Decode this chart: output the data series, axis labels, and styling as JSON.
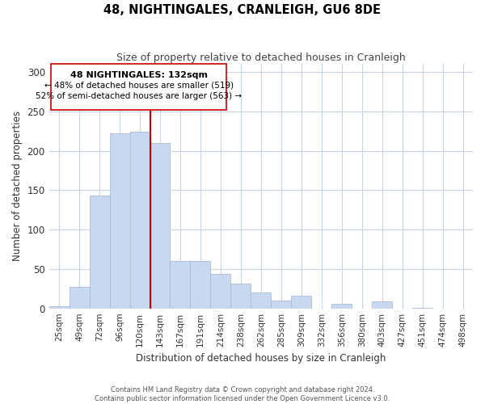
{
  "title": "48, NIGHTINGALES, CRANLEIGH, GU6 8DE",
  "subtitle": "Size of property relative to detached houses in Cranleigh",
  "xlabel": "Distribution of detached houses by size in Cranleigh",
  "ylabel": "Number of detached properties",
  "bar_labels": [
    "25sqm",
    "49sqm",
    "72sqm",
    "96sqm",
    "120sqm",
    "143sqm",
    "167sqm",
    "191sqm",
    "214sqm",
    "238sqm",
    "262sqm",
    "285sqm",
    "309sqm",
    "332sqm",
    "356sqm",
    "380sqm",
    "403sqm",
    "427sqm",
    "451sqm",
    "474sqm",
    "498sqm"
  ],
  "bar_values": [
    3,
    27,
    143,
    222,
    224,
    210,
    60,
    60,
    44,
    31,
    20,
    10,
    16,
    0,
    6,
    0,
    9,
    0,
    1,
    0,
    0
  ],
  "bar_color": "#c8d8f0",
  "bar_edge_color": "#a8bcd8",
  "vline_color": "#cc0000",
  "annotation_title": "48 NIGHTINGALES: 132sqm",
  "annotation_line1": "← 48% of detached houses are smaller (519)",
  "annotation_line2": "52% of semi-detached houses are larger (563) →",
  "box_edge_color": "#cc0000",
  "ylim": [
    0,
    310
  ],
  "yticks": [
    0,
    50,
    100,
    150,
    200,
    250,
    300
  ],
  "footer1": "Contains HM Land Registry data © Crown copyright and database right 2024.",
  "footer2": "Contains public sector information licensed under the Open Government Licence v3.0.",
  "bg_color": "#ffffff",
  "grid_color": "#c8d4e8"
}
